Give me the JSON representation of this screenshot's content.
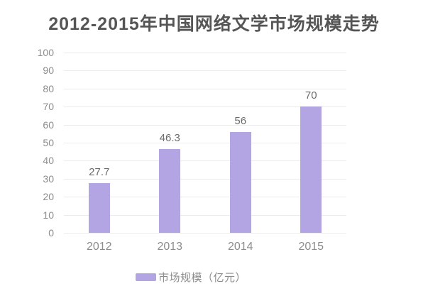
{
  "title": {
    "text": "2012-2015年中国网络文学市场规模走势"
  },
  "legend": {
    "label": "市场规模（亿元）"
  },
  "chart_data": {
    "type": "bar",
    "title": "2012-2015年中国网络文学市场规模走势",
    "categories": [
      "2012",
      "2013",
      "2014",
      "2015"
    ],
    "series": [
      {
        "name": "市场规模（亿元）",
        "values": [
          27.7,
          46.3,
          56,
          70
        ]
      }
    ],
    "value_labels": [
      "27.7",
      "46.3",
      "56",
      "70"
    ],
    "xlabel": "",
    "ylabel": "",
    "ylim": [
      0,
      100
    ],
    "yticks": [
      0,
      10,
      20,
      30,
      40,
      50,
      60,
      70,
      80,
      90,
      100
    ],
    "grid": true,
    "legend_position": "bottom",
    "colors": {
      "bar": "#b3a4e3",
      "grid_line": "#ececec",
      "title_text": "#555555",
      "axis_label": "#8c8c8c",
      "value_label": "#6b6b6b",
      "legend_text": "#8c8c8c",
      "background": "#ffffff"
    }
  }
}
